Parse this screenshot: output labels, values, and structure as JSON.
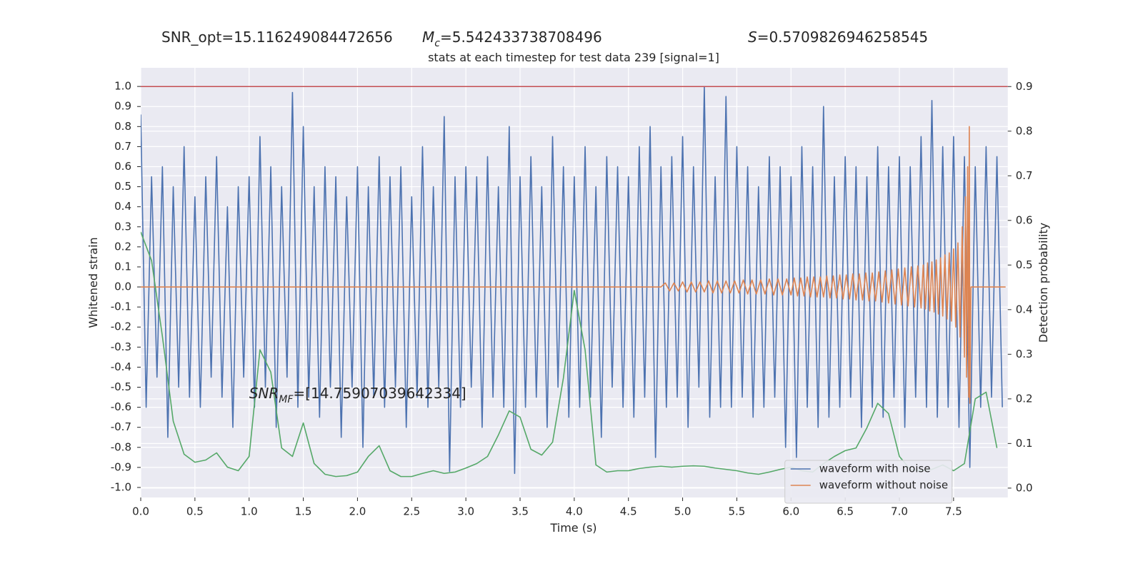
{
  "chart_data": {
    "type": "line",
    "header": [
      {
        "text": "SNR_opt=15.116249084472656"
      },
      {
        "symbol": "M",
        "subscript": "c",
        "text": "=5.542433738708496"
      },
      {
        "symbol": "S",
        "text": "=0.5709826946258545"
      }
    ],
    "title": "stats at each timestep for test data 239 [signal=1]",
    "xlabel": "Time (s)",
    "ylabel": "Whitened strain",
    "y2label": "Detection probability",
    "annotation": {
      "symbol": "SNR",
      "subscript": "MF",
      "text": "=[14.75907039642334]"
    },
    "xlim": [
      0,
      8
    ],
    "ylim": [
      -1.05,
      1.093
    ],
    "y2lim": [
      -0.021,
      0.942
    ],
    "xticks": [
      {
        "value": 0,
        "label": "0.0"
      },
      0.5,
      {
        "value": 1,
        "label": "1.0"
      },
      1.5,
      {
        "value": 2,
        "label": "2.0"
      },
      2.5,
      {
        "value": 3,
        "label": "3.0"
      },
      3.5,
      {
        "value": 4,
        "label": "4.0"
      },
      4.5,
      {
        "value": 5,
        "label": "5.0"
      },
      5.5,
      {
        "value": 6,
        "label": "6.0"
      },
      6.5,
      {
        "value": 7,
        "label": "7.0"
      },
      7.5
    ],
    "yticks": [
      {
        "value": -1,
        "label": "-1.0"
      },
      -0.9,
      -0.8,
      -0.7,
      -0.6,
      -0.5,
      -0.4,
      -0.3,
      -0.2,
      -0.1,
      {
        "value": 0,
        "label": "0.0"
      },
      0.1,
      0.2,
      0.3,
      0.4,
      0.5,
      0.6,
      0.7,
      0.8,
      0.9,
      {
        "value": 1,
        "label": "1.0"
      }
    ],
    "y2ticks": [
      {
        "value": 0,
        "label": "0.0"
      },
      0.1,
      0.2,
      0.3,
      0.4,
      0.5,
      0.6,
      0.7,
      0.8,
      0.9
    ],
    "grid": true,
    "background": "#eaeaf2",
    "legend": "lower right",
    "hlines": [
      {
        "value": 0.9,
        "axis": "y2",
        "color": "#c44e52"
      }
    ],
    "series": [
      {
        "name": "waveform with noise",
        "color": "#4c72b0",
        "x": [
          0,
          0.05,
          0.1,
          0.15,
          0.2,
          0.25,
          0.3,
          0.35,
          0.4,
          0.45,
          0.5,
          0.55,
          0.6,
          0.65,
          0.7,
          0.75,
          0.8,
          0.85,
          0.9,
          0.95,
          1,
          1.05,
          1.1,
          1.15,
          1.2,
          1.25,
          1.3,
          1.35,
          1.4,
          1.45,
          1.5,
          1.55,
          1.6,
          1.65,
          1.7,
          1.75,
          1.8,
          1.85,
          1.9,
          1.95,
          2,
          2.05,
          2.1,
          2.15,
          2.2,
          2.25,
          2.3,
          2.35,
          2.4,
          2.45,
          2.5,
          2.55,
          2.6,
          2.65,
          2.7,
          2.75,
          2.8,
          2.85,
          2.9,
          2.95,
          3,
          3.05,
          3.1,
          3.15,
          3.2,
          3.25,
          3.3,
          3.35,
          3.4,
          3.45,
          3.5,
          3.55,
          3.6,
          3.65,
          3.7,
          3.75,
          3.8,
          3.85,
          3.9,
          3.95,
          4,
          4.05,
          4.1,
          4.15,
          4.2,
          4.25,
          4.3,
          4.35,
          4.4,
          4.45,
          4.5,
          4.55,
          4.6,
          4.65,
          4.7,
          4.75,
          4.8,
          4.85,
          4.9,
          4.95,
          5,
          5.05,
          5.1,
          5.15,
          5.2,
          5.25,
          5.3,
          5.35,
          5.4,
          5.45,
          5.5,
          5.55,
          5.6,
          5.65,
          5.7,
          5.75,
          5.8,
          5.85,
          5.9,
          5.95,
          6,
          6.05,
          6.1,
          6.15,
          6.2,
          6.25,
          6.3,
          6.35,
          6.4,
          6.45,
          6.5,
          6.55,
          6.6,
          6.65,
          6.7,
          6.75,
          6.8,
          6.85,
          6.9,
          6.95,
          7,
          7.05,
          7.1,
          7.15,
          7.2,
          7.25,
          7.3,
          7.35,
          7.4,
          7.45,
          7.5,
          7.55,
          7.6,
          7.65,
          7.7,
          7.75,
          7.8,
          7.85,
          7.9,
          7.95
        ],
        "values": [
          0.86,
          -0.6,
          0.55,
          -0.45,
          0.6,
          -0.75,
          0.5,
          -0.5,
          0.7,
          -0.55,
          0.45,
          -0.6,
          0.55,
          -0.45,
          0.65,
          -0.55,
          0.4,
          -0.7,
          0.5,
          -0.45,
          0.55,
          -0.6,
          0.75,
          -0.5,
          0.6,
          -0.7,
          0.5,
          -0.45,
          0.97,
          -0.6,
          0.8,
          -0.55,
          0.5,
          -0.65,
          0.6,
          -0.5,
          0.55,
          -0.75,
          0.45,
          -0.5,
          0.6,
          -0.8,
          0.5,
          -0.55,
          0.65,
          -0.6,
          0.55,
          -0.5,
          0.6,
          -0.7,
          0.45,
          -0.55,
          0.7,
          -0.6,
          0.5,
          -0.5,
          0.85,
          -0.92,
          0.55,
          -0.6,
          0.6,
          -0.5,
          0.55,
          -0.7,
          0.65,
          -0.55,
          0.5,
          -0.6,
          0.8,
          -0.93,
          0.55,
          -0.6,
          0.65,
          -0.55,
          0.5,
          -0.7,
          0.75,
          -0.5,
          0.6,
          -0.65,
          0.55,
          -0.6,
          0.7,
          -0.55,
          0.5,
          -0.75,
          0.65,
          -0.5,
          0.6,
          -0.6,
          0.55,
          -0.65,
          0.7,
          -0.55,
          0.8,
          -0.85,
          0.6,
          -0.6,
          0.65,
          -0.55,
          0.75,
          -0.7,
          0.6,
          -0.5,
          1.0,
          -0.65,
          0.55,
          -0.6,
          0.95,
          -0.6,
          0.7,
          -0.55,
          0.6,
          -0.65,
          0.5,
          -0.6,
          0.65,
          -0.55,
          0.6,
          -0.8,
          0.55,
          -0.85,
          0.7,
          -0.6,
          0.6,
          -0.7,
          0.9,
          -0.65,
          0.55,
          -0.6,
          0.65,
          -0.55,
          0.6,
          -0.7,
          0.55,
          -0.6,
          0.7,
          -0.65,
          0.6,
          -0.55,
          0.65,
          -0.7,
          0.6,
          -0.55,
          0.75,
          -0.6,
          0.93,
          -0.65,
          0.7,
          -0.6,
          0.75,
          -0.7,
          0.65,
          -0.9,
          0.6,
          -0.6,
          0.7,
          -0.55,
          0.65,
          -0.6
        ]
      },
      {
        "name": "waveform without noise",
        "color": "#dd8452",
        "x": [
          0,
          4.8,
          4.84,
          4.88,
          4.92,
          4.96,
          5.0,
          5.04,
          5.08,
          5.12,
          5.16,
          5.2,
          5.24,
          5.28,
          5.32,
          5.36,
          5.4,
          5.44,
          5.48,
          5.52,
          5.56,
          5.6,
          5.64,
          5.68,
          5.72,
          5.76,
          5.8,
          5.84,
          5.88,
          5.92,
          5.96,
          6.0,
          6.03,
          6.06,
          6.09,
          6.12,
          6.15,
          6.18,
          6.21,
          6.24,
          6.27,
          6.3,
          6.33,
          6.36,
          6.39,
          6.42,
          6.45,
          6.48,
          6.51,
          6.54,
          6.57,
          6.6,
          6.63,
          6.66,
          6.69,
          6.72,
          6.75,
          6.78,
          6.81,
          6.84,
          6.87,
          6.9,
          6.93,
          6.96,
          6.99,
          7.02,
          7.05,
          7.08,
          7.11,
          7.14,
          7.17,
          7.2,
          7.22,
          7.24,
          7.26,
          7.28,
          7.3,
          7.32,
          7.34,
          7.36,
          7.38,
          7.4,
          7.42,
          7.44,
          7.46,
          7.48,
          7.5,
          7.52,
          7.54,
          7.56,
          7.58,
          7.6,
          7.61,
          7.62,
          7.63,
          7.64,
          7.645,
          7.65,
          7.66,
          7.98
        ],
        "values": [
          0,
          0,
          0.02,
          -0.02,
          0.02,
          -0.02,
          0.025,
          -0.025,
          0.025,
          -0.025,
          0.025,
          -0.025,
          0.03,
          -0.03,
          0.03,
          -0.03,
          0.03,
          -0.03,
          0.03,
          -0.03,
          0.035,
          -0.035,
          0.035,
          -0.035,
          0.035,
          -0.035,
          0.04,
          -0.04,
          0.04,
          -0.04,
          0.04,
          -0.04,
          0.045,
          -0.045,
          0.045,
          -0.045,
          0.05,
          -0.05,
          0.05,
          -0.05,
          0.05,
          -0.05,
          0.055,
          -0.055,
          0.055,
          -0.055,
          0.06,
          -0.06,
          0.06,
          -0.06,
          0.065,
          -0.065,
          0.065,
          -0.065,
          0.07,
          -0.07,
          0.07,
          -0.07,
          0.075,
          -0.075,
          0.08,
          -0.08,
          0.085,
          -0.085,
          0.09,
          -0.09,
          0.095,
          -0.095,
          0.1,
          -0.1,
          0.105,
          -0.105,
          0.11,
          -0.11,
          0.12,
          -0.12,
          0.125,
          -0.125,
          0.135,
          -0.135,
          0.145,
          -0.145,
          0.16,
          -0.16,
          0.17,
          -0.17,
          0.19,
          -0.2,
          0.22,
          -0.25,
          0.3,
          -0.35,
          0.45,
          -0.45,
          0.6,
          -0.55,
          0.8,
          -0.58,
          0,
          0
        ]
      },
      {
        "color": "#55a868",
        "axis": "y2",
        "x": [
          0,
          0.1,
          0.2,
          0.3,
          0.4,
          0.5,
          0.6,
          0.7,
          0.8,
          0.9,
          1,
          1.1,
          1.2,
          1.3,
          1.4,
          1.5,
          1.6,
          1.7,
          1.8,
          1.9,
          2,
          2.1,
          2.2,
          2.3,
          2.4,
          2.5,
          2.6,
          2.7,
          2.8,
          2.9,
          3,
          3.1,
          3.2,
          3.3,
          3.4,
          3.5,
          3.6,
          3.7,
          3.8,
          3.9,
          4,
          4.1,
          4.2,
          4.3,
          4.4,
          4.5,
          4.6,
          4.7,
          4.8,
          4.9,
          5,
          5.1,
          5.2,
          5.3,
          5.4,
          5.5,
          5.6,
          5.7,
          5.8,
          5.9,
          6,
          6.1,
          6.2,
          6.3,
          6.4,
          6.5,
          6.6,
          6.7,
          6.8,
          6.9,
          7,
          7.1,
          7.2,
          7.3,
          7.4,
          7.5,
          7.6,
          7.7,
          7.8,
          7.9
        ],
        "values": [
          0.574,
          0.51,
          0.34,
          0.15,
          0.076,
          0.058,
          0.063,
          0.079,
          0.047,
          0.039,
          0.071,
          0.31,
          0.26,
          0.09,
          0.071,
          0.146,
          0.055,
          0.031,
          0.026,
          0.028,
          0.036,
          0.071,
          0.095,
          0.039,
          0.026,
          0.026,
          0.033,
          0.039,
          0.033,
          0.036,
          0.045,
          0.055,
          0.071,
          0.119,
          0.173,
          0.159,
          0.087,
          0.074,
          0.103,
          0.247,
          0.443,
          0.31,
          0.052,
          0.036,
          0.039,
          0.039,
          0.044,
          0.047,
          0.049,
          0.047,
          0.049,
          0.05,
          0.049,
          0.045,
          0.042,
          0.039,
          0.034,
          0.031,
          0.036,
          0.042,
          0.047,
          0.039,
          0.036,
          0.055,
          0.071,
          0.084,
          0.09,
          0.135,
          0.19,
          0.167,
          0.071,
          0.042,
          0.039,
          0.042,
          0.052,
          0.039,
          0.055,
          0.2,
          0.215,
          0.09
        ]
      }
    ]
  }
}
